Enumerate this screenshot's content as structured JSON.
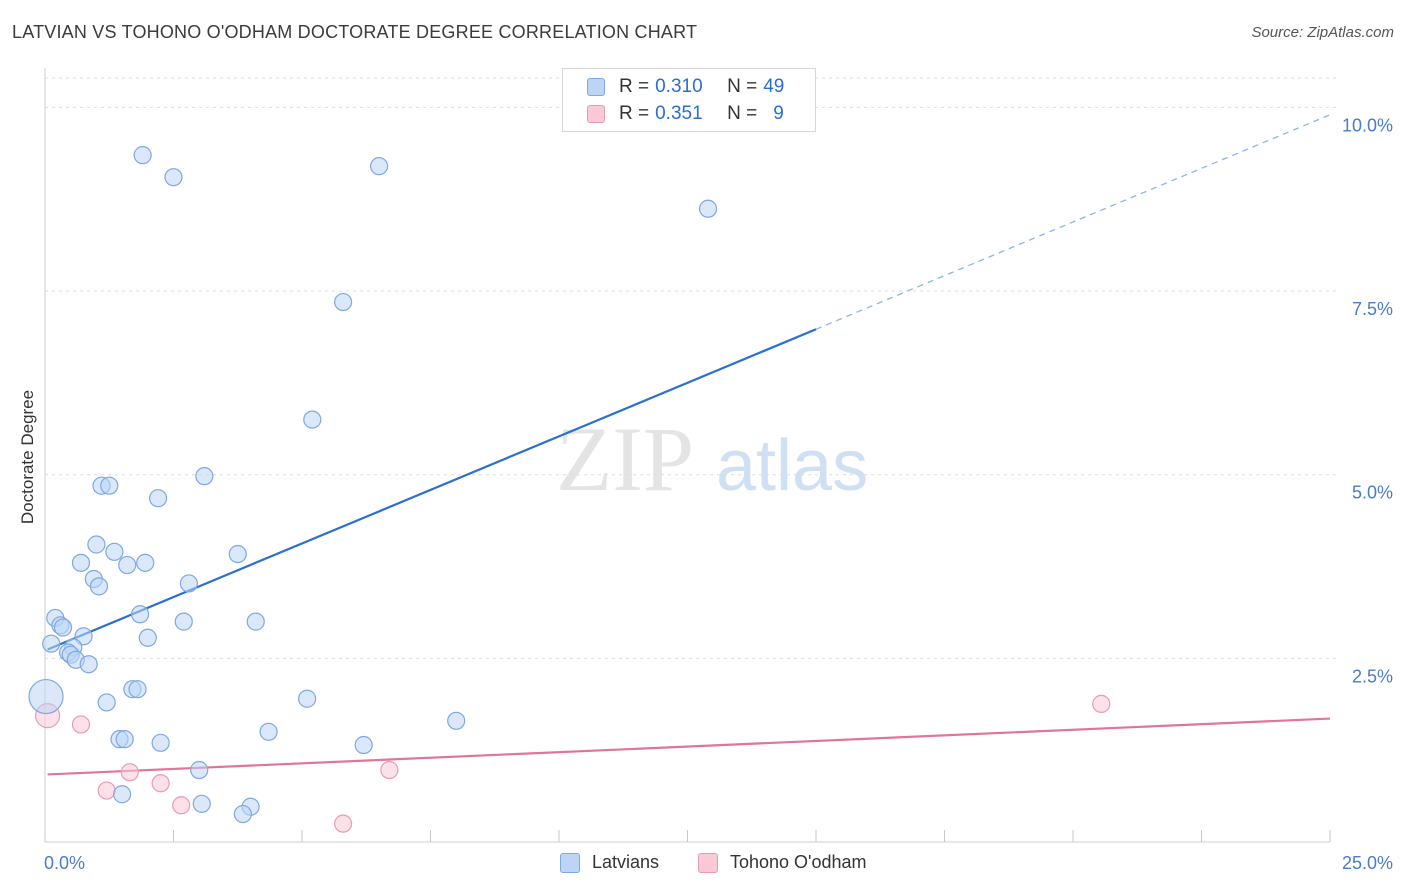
{
  "header": {
    "title": "LATVIAN VS TOHONO O'ODHAM DOCTORATE DEGREE CORRELATION CHART",
    "source": "Source: ZipAtlas.com"
  },
  "watermark": {
    "zip": "ZIP",
    "atlas": "atlas"
  },
  "legend": {
    "rows": [
      {
        "r_label": "R =",
        "r_value": "0.310",
        "n_label": "N =",
        "n_value": "49",
        "color": "#bcd5f5"
      },
      {
        "r_label": "R =",
        "r_value": "0.351",
        "n_label": "N =",
        "n_value": "9",
        "color": "#f9c9d6"
      }
    ]
  },
  "bottom_legend": {
    "series1": "Latvians",
    "series2": "Tohono O'odham"
  },
  "chart_data": {
    "type": "scatter",
    "title": "LATVIAN VS TOHONO O'ODHAM DOCTORATE DEGREE CORRELATION CHART",
    "xlabel": "",
    "ylabel": "Doctorate Degree",
    "xlim": [
      0,
      25
    ],
    "ylim": [
      0,
      10.4
    ],
    "x_tick_labels": [
      "0.0%",
      "25.0%"
    ],
    "y_ticks": [
      2.5,
      5.0,
      7.5,
      10.0
    ],
    "y_tick_labels": [
      "2.5%",
      "5.0%",
      "7.5%",
      "10.0%"
    ],
    "colors": {
      "latvians": "#7ea8e0",
      "latvians_fill": "#bcd5f5",
      "latvians_line": "#2b6fd0",
      "tohono": "#ea9ab2",
      "tohono_fill": "#f9c9d6",
      "tohono_line": "#e2739a",
      "tick": "#4a7cc9"
    },
    "series": [
      {
        "name": "Latvians",
        "trend": {
          "x0": 0.05,
          "y0": 2.62,
          "x1": 15.0,
          "y1": 6.98,
          "dashed_to_x": 25.0,
          "dashed_to_y": 9.9
        },
        "points": [
          {
            "x": 1.9,
            "y": 9.35
          },
          {
            "x": 2.5,
            "y": 9.05
          },
          {
            "x": 6.5,
            "y": 9.2
          },
          {
            "x": 12.9,
            "y": 8.62
          },
          {
            "x": 5.8,
            "y": 7.35
          },
          {
            "x": 5.2,
            "y": 5.75
          },
          {
            "x": 3.1,
            "y": 4.98
          },
          {
            "x": 1.1,
            "y": 4.85
          },
          {
            "x": 1.25,
            "y": 4.85
          },
          {
            "x": 2.2,
            "y": 4.68
          },
          {
            "x": 1.0,
            "y": 4.05
          },
          {
            "x": 1.35,
            "y": 3.95
          },
          {
            "x": 3.75,
            "y": 3.92
          },
          {
            "x": 0.7,
            "y": 3.8
          },
          {
            "x": 1.6,
            "y": 3.77
          },
          {
            "x": 1.95,
            "y": 3.8
          },
          {
            "x": 0.95,
            "y": 3.58
          },
          {
            "x": 1.05,
            "y": 3.48
          },
          {
            "x": 2.8,
            "y": 3.52
          },
          {
            "x": 0.2,
            "y": 3.05
          },
          {
            "x": 1.85,
            "y": 3.1
          },
          {
            "x": 2.7,
            "y": 3.0
          },
          {
            "x": 4.1,
            "y": 3.0
          },
          {
            "x": 0.3,
            "y": 2.95
          },
          {
            "x": 0.35,
            "y": 2.92
          },
          {
            "x": 0.75,
            "y": 2.8
          },
          {
            "x": 2.0,
            "y": 2.78
          },
          {
            "x": 0.12,
            "y": 2.7
          },
          {
            "x": 0.55,
            "y": 2.65
          },
          {
            "x": 0.45,
            "y": 2.58
          },
          {
            "x": 0.5,
            "y": 2.55
          },
          {
            "x": 0.6,
            "y": 2.48
          },
          {
            "x": 0.85,
            "y": 2.42
          },
          {
            "x": 0.02,
            "y": 1.98,
            "r": 17
          },
          {
            "x": 1.7,
            "y": 2.08
          },
          {
            "x": 1.8,
            "y": 2.08
          },
          {
            "x": 1.2,
            "y": 1.9
          },
          {
            "x": 5.1,
            "y": 1.95
          },
          {
            "x": 8.0,
            "y": 1.65
          },
          {
            "x": 4.35,
            "y": 1.5
          },
          {
            "x": 1.45,
            "y": 1.4
          },
          {
            "x": 1.55,
            "y": 1.4
          },
          {
            "x": 2.25,
            "y": 1.35
          },
          {
            "x": 6.2,
            "y": 1.32
          },
          {
            "x": 3.0,
            "y": 0.98
          },
          {
            "x": 1.5,
            "y": 0.65
          },
          {
            "x": 3.05,
            "y": 0.52
          },
          {
            "x": 4.0,
            "y": 0.48
          },
          {
            "x": 3.85,
            "y": 0.38
          }
        ]
      },
      {
        "name": "Tohono O'odham",
        "trend": {
          "x0": 0.05,
          "y0": 0.92,
          "x1": 25.0,
          "y1": 1.68
        },
        "points": [
          {
            "x": 0.05,
            "y": 1.72,
            "r": 12
          },
          {
            "x": 0.7,
            "y": 1.6
          },
          {
            "x": 1.65,
            "y": 0.95
          },
          {
            "x": 2.25,
            "y": 0.8
          },
          {
            "x": 1.2,
            "y": 0.7
          },
          {
            "x": 2.65,
            "y": 0.5
          },
          {
            "x": 5.8,
            "y": 0.25
          },
          {
            "x": 6.7,
            "y": 0.98
          },
          {
            "x": 20.55,
            "y": 1.88
          }
        ]
      }
    ]
  }
}
